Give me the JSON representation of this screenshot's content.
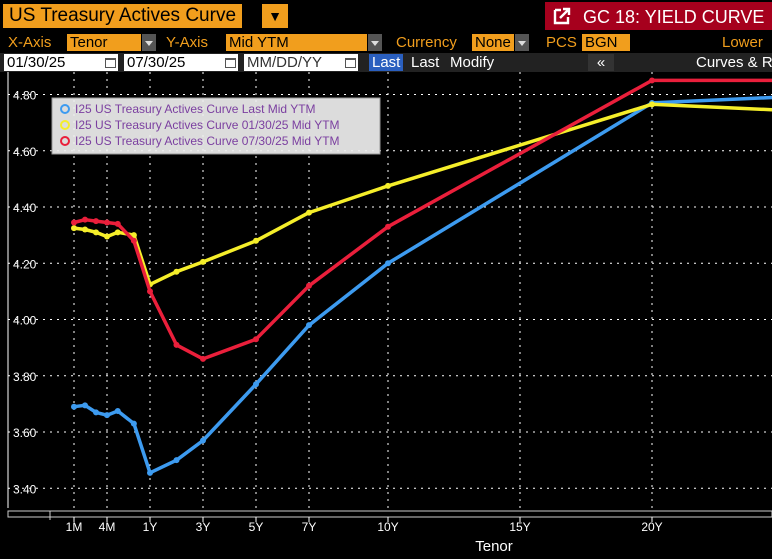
{
  "titlebar": {
    "title": "US Treasury Actives Curve",
    "function_label": "GC 18: YIELD CURVE"
  },
  "settings": {
    "xaxis_label": "X-Axis",
    "xaxis_value": "Tenor",
    "yaxis_label": "Y-Axis",
    "yaxis_value": "Mid YTM",
    "currency_label": "Currency",
    "currency_value": "None",
    "pcs_label": "PCS",
    "pcs_value": "BGN",
    "lower_label": "Lower"
  },
  "daterow": {
    "date1": "01/30/25",
    "date2": "07/30/25",
    "date3_placeholder": "MM/DD/YY",
    "last_active": "Last",
    "last": "Last",
    "modify": "Modify",
    "collapse": "«",
    "curves": "Curves & R"
  },
  "colors": {
    "blue": "#3d9bf0",
    "yellow": "#f5ee2a",
    "red": "#ea1f3b",
    "accent": "#f19e1d",
    "title_red": "#a6001d"
  },
  "chart_data": {
    "type": "line",
    "xlabel": "Tenor",
    "ylabel": "",
    "ylim": [
      3.33,
      4.88
    ],
    "yticks": [
      "4.80",
      "4.60",
      "4.40",
      "4.20",
      "4.00",
      "3.80",
      "3.60",
      "3.40"
    ],
    "xticks": [
      "1M",
      "4M",
      "1Y",
      "3Y",
      "5Y",
      "7Y",
      "10Y",
      "15Y",
      "20Y"
    ],
    "tenors_years": [
      0.0833,
      0.1667,
      0.25,
      0.3333,
      0.5,
      0.75,
      1,
      2,
      3,
      5,
      7,
      10,
      20,
      30
    ],
    "legend_position": "top-left",
    "series": [
      {
        "name": "I25 US Treasury Actives Curve Last Mid YTM",
        "color": "blue",
        "values": [
          3.69,
          3.695,
          3.67,
          3.66,
          3.675,
          3.63,
          3.455,
          3.5,
          3.57,
          3.77,
          3.98,
          4.2,
          4.77,
          4.795
        ]
      },
      {
        "name": "I25 US Treasury Actives Curve 01/30/25 Mid YTM",
        "color": "yellow",
        "values": [
          4.325,
          4.32,
          4.31,
          4.295,
          4.31,
          4.3,
          4.125,
          4.17,
          4.205,
          4.28,
          4.38,
          4.475,
          4.765,
          4.74
        ]
      },
      {
        "name": "I25 US Treasury Actives Curve 07/30/25 Mid YTM",
        "color": "red",
        "values": [
          4.345,
          4.355,
          4.35,
          4.345,
          4.34,
          4.28,
          4.1,
          3.91,
          3.86,
          3.93,
          4.12,
          4.33,
          4.85,
          4.85
        ]
      }
    ]
  }
}
